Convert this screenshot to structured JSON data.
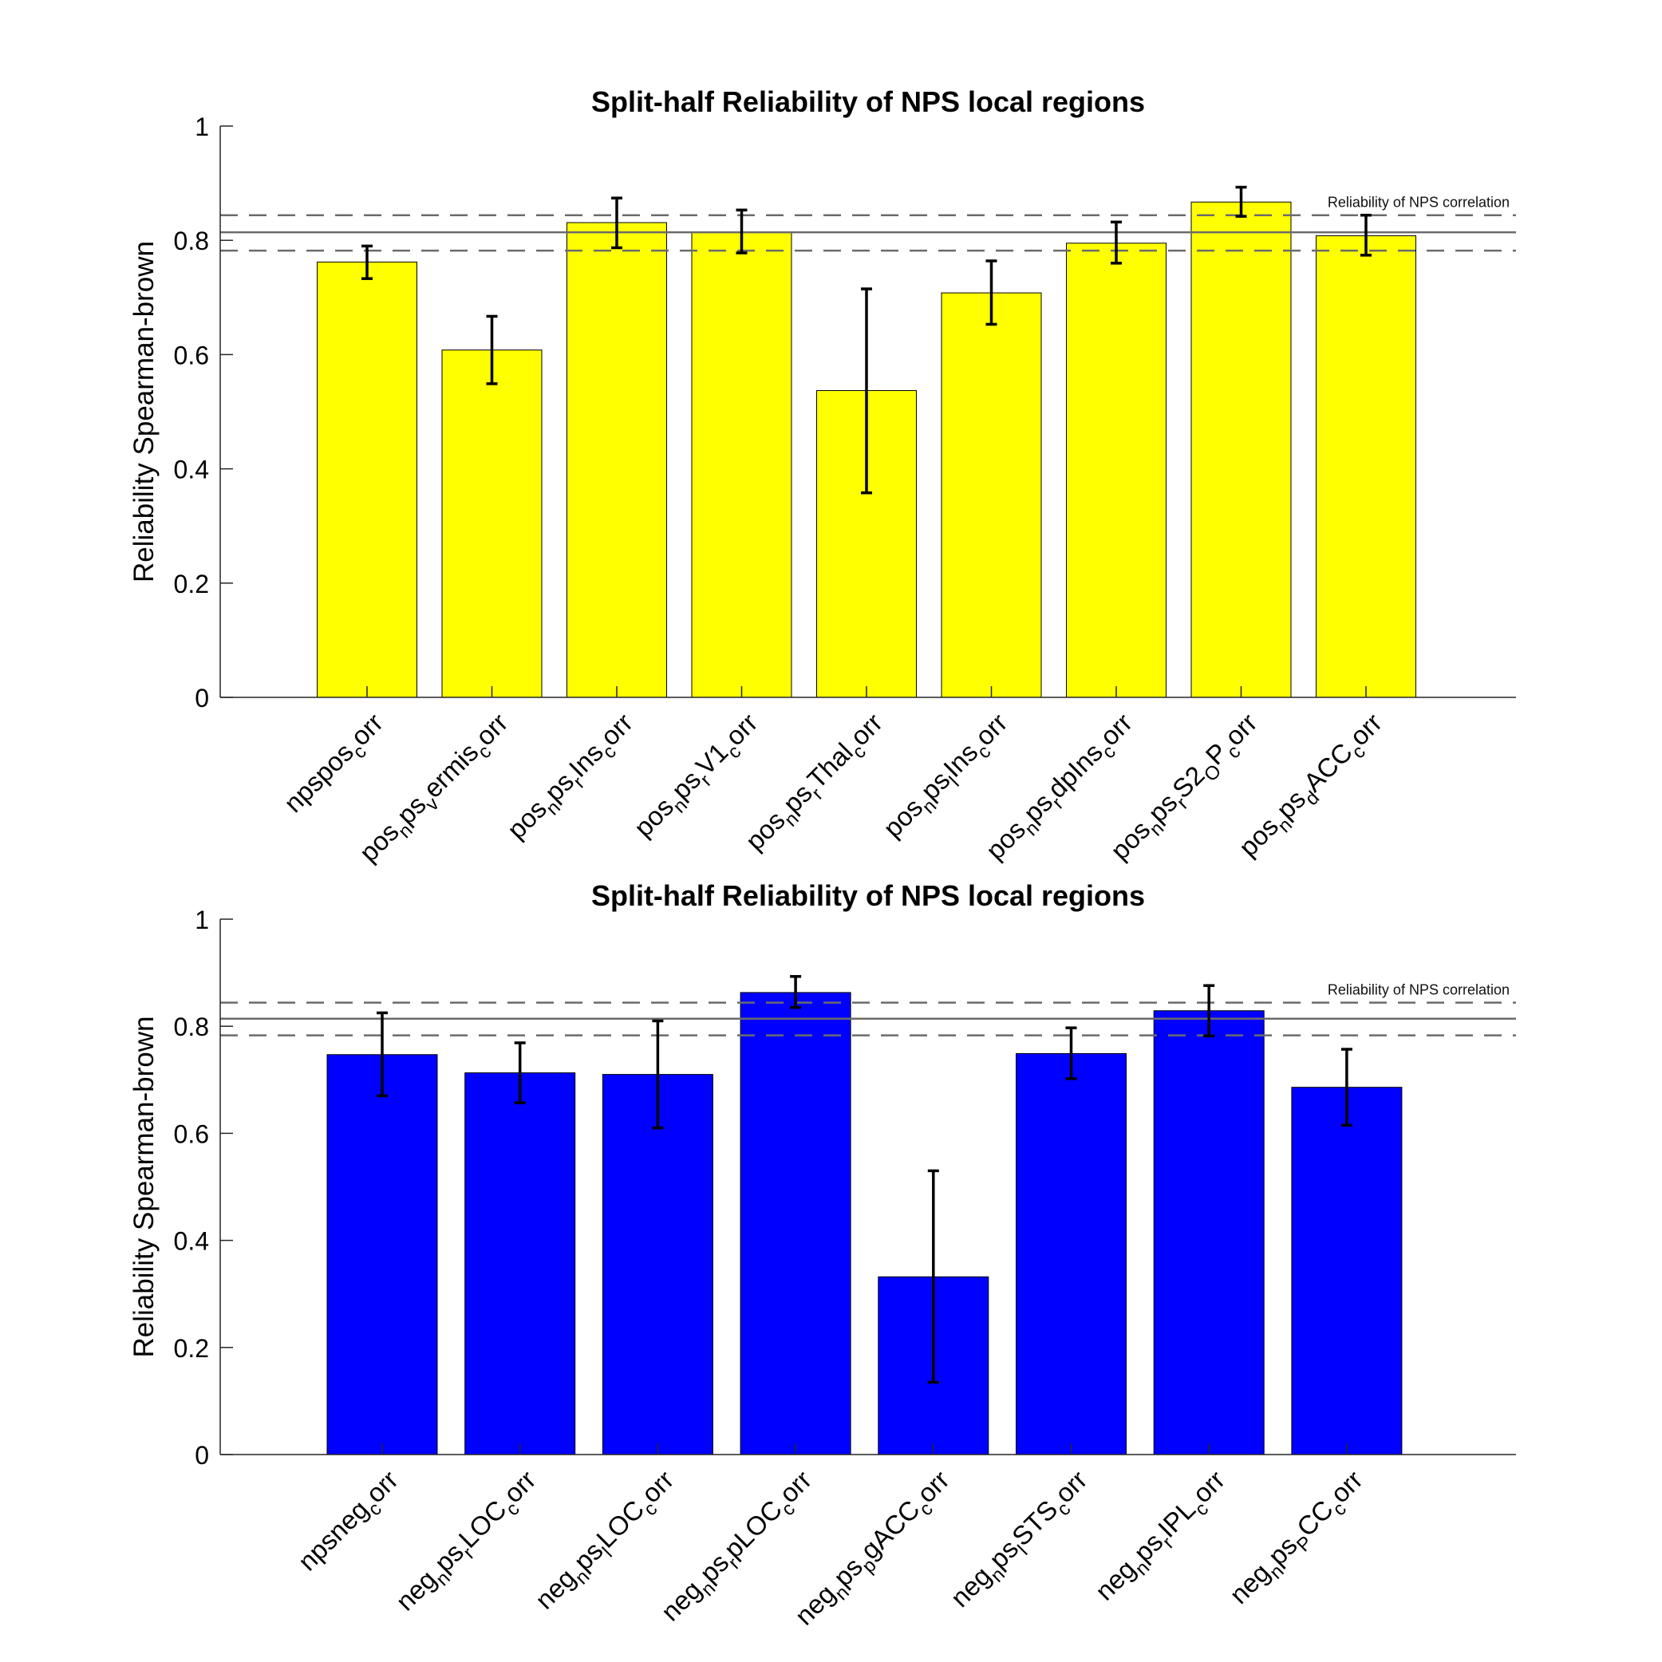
{
  "colors": {
    "positive": "#ffff00",
    "negative": "#0000ff",
    "axis": "#262626",
    "refline": "#6b6b6b",
    "errorbar": "#000000"
  },
  "chart_data": [
    {
      "type": "bar",
      "title": "Split-half Reliability of NPS local regions",
      "ylabel": "Reliability Spearman-brown",
      "xlabel": "",
      "ylim": [
        0,
        1
      ],
      "yticks": [
        "0",
        "0.2",
        "0.4",
        "0.6",
        "0.8",
        "1"
      ],
      "bar_color": "yellow",
      "categories": [
        {
          "parts": [
            [
              "npspos",
              ""
            ],
            [
              "c",
              "sub"
            ],
            [
              "orr",
              ""
            ]
          ]
        },
        {
          "parts": [
            [
              "pos",
              ""
            ],
            [
              "n",
              "sub"
            ],
            [
              "ps",
              ""
            ],
            [
              "v",
              "sub"
            ],
            [
              "ermis",
              ""
            ],
            [
              "c",
              "sub"
            ],
            [
              "orr",
              ""
            ]
          ]
        },
        {
          "parts": [
            [
              "pos",
              ""
            ],
            [
              "n",
              "sub"
            ],
            [
              "ps",
              ""
            ],
            [
              "r",
              "sub"
            ],
            [
              "Ins",
              ""
            ],
            [
              "c",
              "sub"
            ],
            [
              "orr",
              ""
            ]
          ]
        },
        {
          "parts": [
            [
              "pos",
              ""
            ],
            [
              "n",
              "sub"
            ],
            [
              "ps",
              ""
            ],
            [
              "r",
              "sub"
            ],
            [
              "V1",
              ""
            ],
            [
              "c",
              "sub"
            ],
            [
              "orr",
              ""
            ]
          ]
        },
        {
          "parts": [
            [
              "pos",
              ""
            ],
            [
              "n",
              "sub"
            ],
            [
              "ps",
              ""
            ],
            [
              "r",
              "sub"
            ],
            [
              "Thal",
              ""
            ],
            [
              "c",
              "sub"
            ],
            [
              "orr",
              ""
            ]
          ]
        },
        {
          "parts": [
            [
              "pos",
              ""
            ],
            [
              "n",
              "sub"
            ],
            [
              "ps",
              ""
            ],
            [
              "l",
              "sub"
            ],
            [
              "Ins",
              ""
            ],
            [
              "c",
              "sub"
            ],
            [
              "orr",
              ""
            ]
          ]
        },
        {
          "parts": [
            [
              "pos",
              ""
            ],
            [
              "n",
              "sub"
            ],
            [
              "ps",
              ""
            ],
            [
              "r",
              "sub"
            ],
            [
              "dpIns",
              ""
            ],
            [
              "c",
              "sub"
            ],
            [
              "orr",
              ""
            ]
          ]
        },
        {
          "parts": [
            [
              "pos",
              ""
            ],
            [
              "n",
              "sub"
            ],
            [
              "ps",
              ""
            ],
            [
              "r",
              "sub"
            ],
            [
              "S2",
              ""
            ],
            [
              "O",
              "sub"
            ],
            [
              "P",
              ""
            ],
            [
              "c",
              "sub"
            ],
            [
              "orr",
              ""
            ]
          ]
        },
        {
          "parts": [
            [
              "pos",
              ""
            ],
            [
              "n",
              "sub"
            ],
            [
              "ps",
              ""
            ],
            [
              "d",
              "sub"
            ],
            [
              "ACC",
              ""
            ],
            [
              "c",
              "sub"
            ],
            [
              "orr",
              ""
            ]
          ]
        }
      ],
      "values": [
        0.762,
        0.608,
        0.831,
        0.814,
        0.537,
        0.708,
        0.795,
        0.867,
        0.808
      ],
      "error_low": [
        0.733,
        0.549,
        0.787,
        0.778,
        0.358,
        0.653,
        0.76,
        0.842,
        0.774
      ],
      "error_high": [
        0.79,
        0.667,
        0.874,
        0.853,
        0.715,
        0.764,
        0.832,
        0.893,
        0.844
      ],
      "reference": {
        "label": "Reliability of NPS correlation",
        "value": 0.814,
        "lower": 0.782,
        "upper": 0.844
      }
    },
    {
      "type": "bar",
      "title": "Split-half Reliability of NPS local regions",
      "ylabel": "Reliability Spearman-brown",
      "xlabel": "",
      "ylim": [
        0,
        1
      ],
      "yticks": [
        "0",
        "0.2",
        "0.4",
        "0.6",
        "0.8",
        "1"
      ],
      "bar_color": "blue",
      "categories": [
        {
          "parts": [
            [
              "npsneg",
              ""
            ],
            [
              "c",
              "sub"
            ],
            [
              "orr",
              ""
            ]
          ]
        },
        {
          "parts": [
            [
              "neg",
              ""
            ],
            [
              "n",
              "sub"
            ],
            [
              "ps",
              ""
            ],
            [
              "r",
              "sub"
            ],
            [
              "LOC",
              ""
            ],
            [
              "c",
              "sub"
            ],
            [
              "orr",
              ""
            ]
          ]
        },
        {
          "parts": [
            [
              "neg",
              ""
            ],
            [
              "n",
              "sub"
            ],
            [
              "ps",
              ""
            ],
            [
              "l",
              "sub"
            ],
            [
              "LOC",
              ""
            ],
            [
              "c",
              "sub"
            ],
            [
              "orr",
              ""
            ]
          ]
        },
        {
          "parts": [
            [
              "neg",
              ""
            ],
            [
              "n",
              "sub"
            ],
            [
              "ps",
              ""
            ],
            [
              "r",
              "sub"
            ],
            [
              "pLOC",
              ""
            ],
            [
              "c",
              "sub"
            ],
            [
              "orr",
              ""
            ]
          ]
        },
        {
          "parts": [
            [
              "neg",
              ""
            ],
            [
              "n",
              "sub"
            ],
            [
              "ps",
              ""
            ],
            [
              "p",
              "sub"
            ],
            [
              "gACC",
              ""
            ],
            [
              "c",
              "sub"
            ],
            [
              "orr",
              ""
            ]
          ]
        },
        {
          "parts": [
            [
              "neg",
              ""
            ],
            [
              "n",
              "sub"
            ],
            [
              "ps",
              ""
            ],
            [
              "l",
              "sub"
            ],
            [
              "STS",
              ""
            ],
            [
              "c",
              "sub"
            ],
            [
              "orr",
              ""
            ]
          ]
        },
        {
          "parts": [
            [
              "neg",
              ""
            ],
            [
              "n",
              "sub"
            ],
            [
              "ps",
              ""
            ],
            [
              "r",
              "sub"
            ],
            [
              "IPL",
              ""
            ],
            [
              "c",
              "sub"
            ],
            [
              "orr",
              ""
            ]
          ]
        },
        {
          "parts": [
            [
              "neg",
              ""
            ],
            [
              "n",
              "sub"
            ],
            [
              "ps",
              ""
            ],
            [
              "P",
              "sub"
            ],
            [
              "CC",
              ""
            ],
            [
              "c",
              "sub"
            ],
            [
              "orr",
              ""
            ]
          ]
        }
      ],
      "values": [
        0.747,
        0.713,
        0.71,
        0.863,
        0.332,
        0.749,
        0.829,
        0.686
      ],
      "error_low": [
        0.67,
        0.657,
        0.61,
        0.835,
        0.135,
        0.702,
        0.782,
        0.615
      ],
      "error_high": [
        0.825,
        0.769,
        0.81,
        0.893,
        0.53,
        0.797,
        0.876,
        0.757
      ],
      "reference": {
        "label": "Reliability of NPS correlation",
        "value": 0.814,
        "lower": 0.783,
        "upper": 0.844
      }
    }
  ]
}
